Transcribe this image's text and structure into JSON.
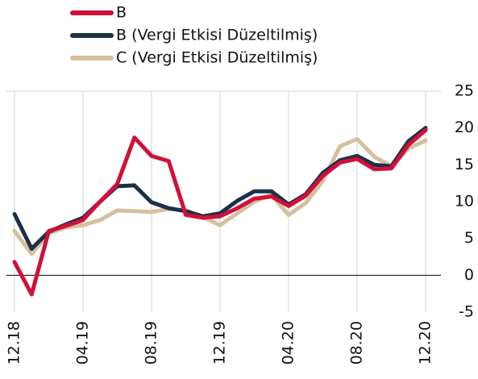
{
  "chart_data": {
    "type": "line",
    "categories": [
      "12.18",
      null,
      null,
      null,
      "04.19",
      null,
      null,
      null,
      "08.19",
      null,
      null,
      null,
      "12.19",
      null,
      null,
      null,
      "04.20",
      null,
      null,
      null,
      "08.20",
      null,
      null,
      null,
      "12.20"
    ],
    "series": [
      {
        "name": "B",
        "color": "#d0103a",
        "values": [
          1.8,
          -2.6,
          6,
          6.7,
          7.5,
          10,
          12.4,
          18.7,
          16.2,
          15.5,
          8.2,
          7.8,
          8,
          9.1,
          10.4,
          10.7,
          9.4,
          10.8,
          13.5,
          15.3,
          15.8,
          14.4,
          14.5,
          17.7,
          19.7
        ]
      },
      {
        "name": "B (Vergi Etkisi Düzeltilmiş)",
        "color": "#1c3048",
        "values": [
          8.3,
          3.6,
          5.9,
          6.9,
          7.8,
          10,
          12.1,
          12.2,
          9.9,
          9.1,
          8.7,
          8,
          8.4,
          10.1,
          11.4,
          11.4,
          9.6,
          11,
          13.9,
          15.6,
          16.2,
          15,
          14.8,
          18.2,
          20
        ]
      },
      {
        "name": "C (Vergi Etkisi Düzeltilmiş)",
        "color": "#d5c09c",
        "values": [
          6,
          2.9,
          5.7,
          6.5,
          6.8,
          7.5,
          8.8,
          8.7,
          8.6,
          9,
          8.8,
          7.9,
          6.8,
          8.4,
          10,
          10.9,
          8.2,
          9.8,
          12.8,
          17.5,
          18.5,
          16.1,
          14.8,
          17.2,
          18.3
        ]
      }
    ],
    "ylim": [
      -5,
      25
    ],
    "yticks": [
      25,
      20,
      15,
      10,
      5,
      0,
      -5
    ],
    "grid": true,
    "legend": "top"
  }
}
